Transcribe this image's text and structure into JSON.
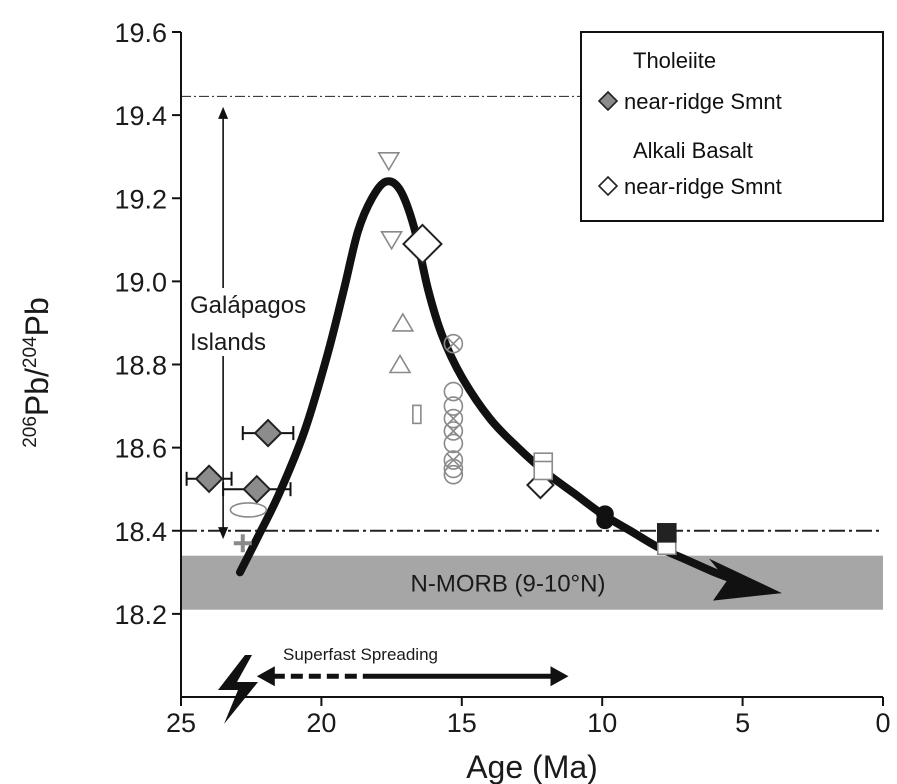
{
  "chart_data": {
    "type": "scatter",
    "xlabel": "Age (Ma)",
    "ylabel": "206Pb/204Pb",
    "ylabel_parts": {
      "sup1": "206",
      "base1": "Pb/",
      "sup2": "204",
      "base2": "Pb"
    },
    "xlim": [
      25,
      0
    ],
    "ylim": [
      18.2,
      19.6
    ],
    "x_axis_bottom_value": 18.0,
    "x_ticks": [
      25,
      20,
      15,
      10,
      5,
      0
    ],
    "x_tick_labels": [
      "25",
      "20",
      "15",
      "10",
      "5",
      "0"
    ],
    "y_ticks": [
      18.2,
      18.4,
      18.6,
      18.8,
      19.0,
      19.2,
      19.4,
      19.6
    ],
    "y_tick_labels": [
      "18.2",
      "18.4",
      "18.6",
      "18.8",
      "19.0",
      "19.2",
      "19.4",
      "19.6"
    ],
    "grid": false,
    "legend": {
      "placement": "top-right",
      "entries": [
        {
          "title": "Tholeiite",
          "label": "near-ridge Smnt",
          "marker": "diamond",
          "fill": "#8c8c8c"
        },
        {
          "title": "Alkali Basalt",
          "label": "near-ridge Smnt",
          "marker": "diamond",
          "fill": "#ffffff"
        }
      ]
    },
    "band": {
      "label": "N-MORB (9-10°N)",
      "y_low": 18.21,
      "y_high": 18.34,
      "color": "#a6a6a6"
    },
    "reference_lines": [
      {
        "y": 19.445,
        "style": "dash-dot",
        "x_from": 25,
        "x_to": 2.8
      },
      {
        "y": 18.4,
        "style": "dash-dot",
        "x_from": 25,
        "x_to": 0
      }
    ],
    "galapagos_range": {
      "label_line1": "Galápagos",
      "label_line2": "Islands",
      "x": 23.5,
      "y_low": 18.38,
      "y_high": 19.42
    },
    "spreading": {
      "label": "Superfast Spreading",
      "x_from": 22.3,
      "x_to": 11.2,
      "y": 18.05
    },
    "trend_curve": [
      [
        22.9,
        18.3
      ],
      [
        22.3,
        18.38
      ],
      [
        21.5,
        18.49
      ],
      [
        20.6,
        18.64
      ],
      [
        19.8,
        18.82
      ],
      [
        19.2,
        18.98
      ],
      [
        18.7,
        19.12
      ],
      [
        18.2,
        19.2
      ],
      [
        17.7,
        19.24
      ],
      [
        17.2,
        19.22
      ],
      [
        16.7,
        19.13
      ],
      [
        16.2,
        18.98
      ],
      [
        15.7,
        18.87
      ],
      [
        15.0,
        18.77
      ],
      [
        14.0,
        18.67
      ],
      [
        13.0,
        18.6
      ],
      [
        12.0,
        18.54
      ],
      [
        11.0,
        18.49
      ],
      [
        10.0,
        18.44
      ],
      [
        9.0,
        18.4
      ],
      [
        8.0,
        18.36
      ],
      [
        7.0,
        18.33
      ],
      [
        6.0,
        18.3
      ],
      [
        5.2,
        18.28
      ]
    ],
    "trend_arrow_tip": [
      3.6,
      18.25
    ],
    "series": [
      {
        "name": "Tholeiite near-ridge Smnt",
        "marker": "diamond",
        "fill": "#8c8c8c",
        "points": [
          {
            "x": 24.0,
            "y": 18.525,
            "xerr": 0.8
          },
          {
            "x": 22.3,
            "y": 18.5,
            "xerr": 1.2
          },
          {
            "x": 21.9,
            "y": 18.635,
            "xerr": 0.9
          }
        ]
      },
      {
        "name": "Alkali Basalt near-ridge Smnt",
        "marker": "diamond",
        "fill": "#ffffff",
        "points": [
          {
            "x": 16.4,
            "y": 19.09,
            "size": "large"
          },
          {
            "x": 12.2,
            "y": 18.51
          }
        ]
      },
      {
        "marker": "triangle-down",
        "points": [
          {
            "x": 17.6,
            "y": 19.29
          },
          {
            "x": 17.5,
            "y": 19.1
          }
        ]
      },
      {
        "marker": "triangle-up",
        "points": [
          {
            "x": 17.1,
            "y": 18.9
          },
          {
            "x": 17.2,
            "y": 18.8
          }
        ]
      },
      {
        "marker": "small-rect",
        "points": [
          {
            "x": 16.6,
            "y": 18.68
          }
        ]
      },
      {
        "marker": "circle-x",
        "points": [
          {
            "x": 15.3,
            "y": 18.85
          },
          {
            "x": 15.3,
            "y": 18.67
          },
          {
            "x": 15.3,
            "y": 18.64
          },
          {
            "x": 15.3,
            "y": 18.57
          }
        ]
      },
      {
        "marker": "circle",
        "points": [
          {
            "x": 15.3,
            "y": 18.735
          },
          {
            "x": 15.3,
            "y": 18.7
          },
          {
            "x": 15.3,
            "y": 18.61
          },
          {
            "x": 15.3,
            "y": 18.55
          },
          {
            "x": 15.3,
            "y": 18.535
          }
        ]
      },
      {
        "marker": "square",
        "fill": "#ffffff",
        "points": [
          {
            "x": 12.1,
            "y": 18.565
          },
          {
            "x": 12.1,
            "y": 18.545
          },
          {
            "x": 7.7,
            "y": 18.365
          }
        ]
      },
      {
        "marker": "circle",
        "fill": "#111111",
        "points": [
          {
            "x": 9.9,
            "y": 18.44
          },
          {
            "x": 9.9,
            "y": 18.425
          }
        ]
      },
      {
        "marker": "square",
        "fill": "#111111",
        "points": [
          {
            "x": 7.7,
            "y": 18.395
          }
        ]
      },
      {
        "marker": "ellipse",
        "fill": "#ffffff",
        "points": [
          {
            "x": 22.6,
            "y": 18.45
          }
        ]
      },
      {
        "marker": "plus",
        "points": [
          {
            "x": 22.8,
            "y": 18.37
          }
        ]
      }
    ]
  }
}
